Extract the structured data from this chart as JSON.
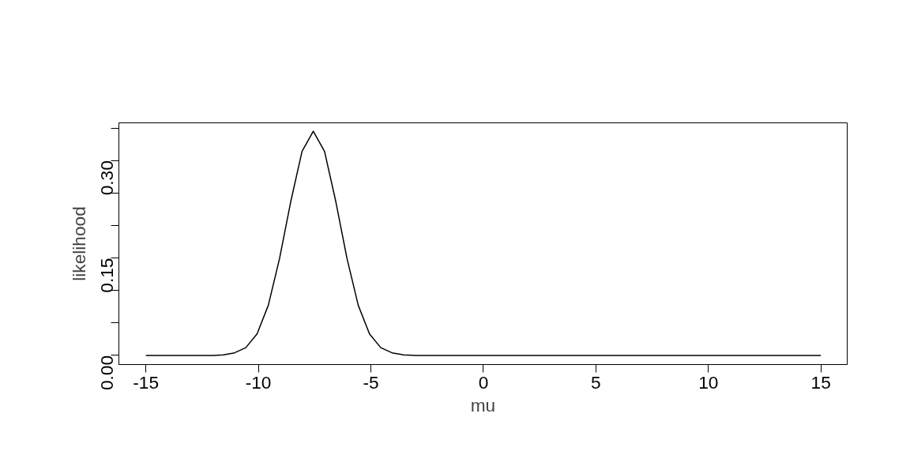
{
  "chart_data": {
    "type": "line",
    "xlabel": "mu",
    "ylabel": "likelihood",
    "x": [
      -15,
      -12,
      -11.56,
      -11.06,
      -10.56,
      -10.06,
      -9.56,
      -9.06,
      -8.56,
      -8.06,
      -7.56,
      -7.06,
      -6.56,
      -6.06,
      -5.56,
      -5.06,
      -4.56,
      -4.06,
      -3.56,
      -3,
      0,
      15
    ],
    "series": [
      {
        "color": "#000000",
        "values": [
          0,
          0,
          0.001,
          0.004,
          0.012,
          0.033,
          0.077,
          0.149,
          0.237,
          0.314,
          0.345,
          0.314,
          0.237,
          0.149,
          0.077,
          0.033,
          0.012,
          0.004,
          0.001,
          0,
          0,
          0
        ]
      }
    ],
    "xlim": [
      -16.2,
      16.17
    ],
    "ylim": [
      -0.014,
      0.358
    ],
    "xticks": [
      -15,
      -10,
      -5,
      0,
      5,
      10,
      15
    ],
    "yticks": [
      {
        "value": 0,
        "label": "0.00"
      },
      {
        "value": 0.05,
        "label": null
      },
      {
        "value": 0.1,
        "label": null
      },
      0.15,
      {
        "value": 0.2,
        "label": null
      },
      {
        "value": 0.25,
        "label": null
      },
      {
        "value": 0.3,
        "label": "0.30"
      },
      {
        "value": 0.35,
        "label": null
      }
    ],
    "grid": false,
    "marker": "none",
    "line_style": "solid"
  }
}
